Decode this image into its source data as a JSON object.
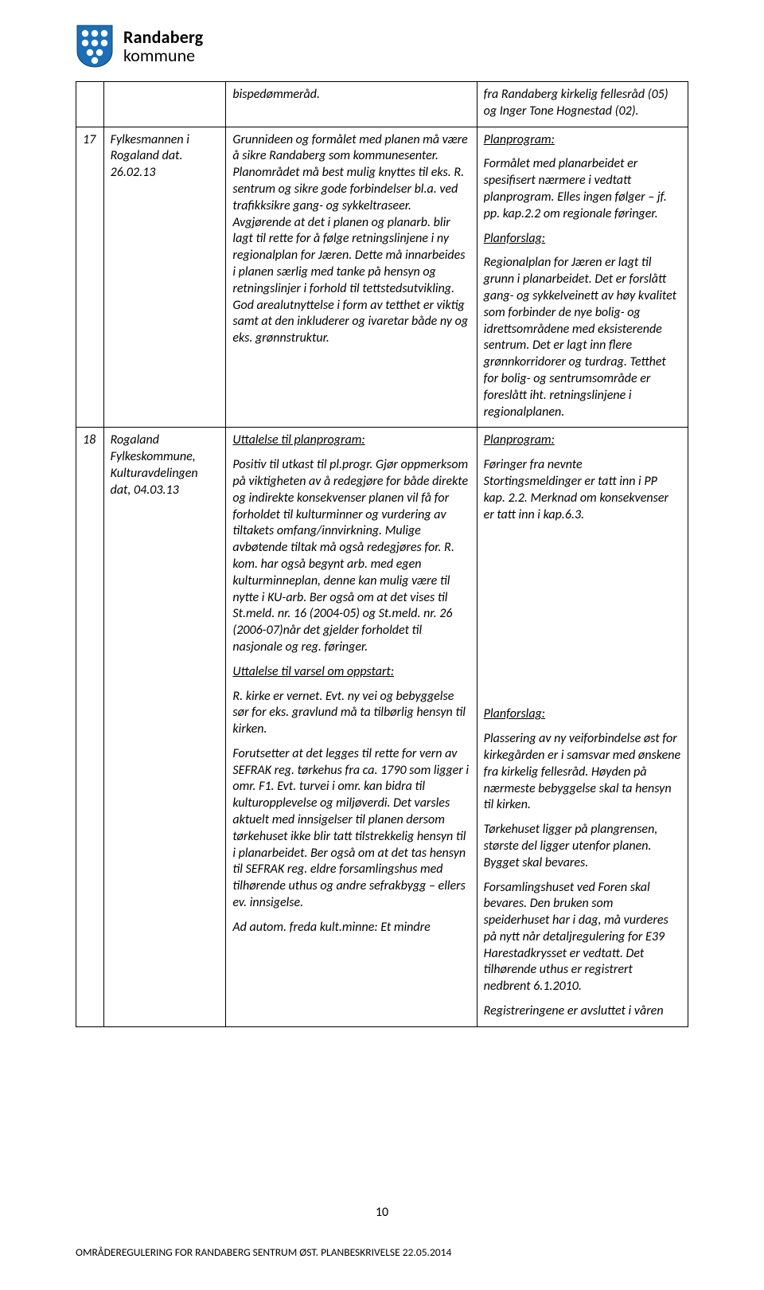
{
  "brand": {
    "line1": "Randaberg",
    "line2": "kommune"
  },
  "page_number": "10",
  "footer": "OMRÅDEREGULERING FOR RANDABERG SENTRUM ØST. PLANBESKRIVELSE 22.05.2014",
  "rows": [
    {
      "n": "",
      "who": "",
      "mid": [
        {
          "text": "bispedømmeråd."
        }
      ],
      "rsp": [
        {
          "text": "fra Randaberg kirkelig fellesråd (05) og Inger Tone Hognestad (02)."
        }
      ]
    },
    {
      "n": "17",
      "who": "Fylkesmannen i Rogaland dat. 26.02.13",
      "mid": [
        {
          "text": "Grunnideen og formålet med planen må være å sikre Randaberg som kommunesenter. Planområdet må best mulig knyttes til eks. R. sentrum og sikre gode forbindelser bl.a. ved trafikksikre gang- og sykkeltraseer. Avgjørende at det i planen og planarb. blir lagt til rette for å følge retningslinjene i ny regionalplan for Jæren. Dette må innarbeides i planen særlig med tanke på hensyn og retningslinjer i forhold til tettstedsutvikling. God arealutnyttelse i form av tetthet er viktig samt at den inkluderer og ivaretar både ny og eks. grønnstruktur."
        }
      ],
      "rsp": [
        {
          "u": true,
          "text": "Planprogram:"
        },
        {
          "text": "Formålet med planarbeidet er spesifisert nærmere i vedtatt planprogram. Elles ingen følger – jf. pp. kap.2.2 om regionale føringer."
        },
        {
          "u": true,
          "text": "Planforslag:"
        },
        {
          "text": "Regionalplan for Jæren er lagt til grunn i planarbeidet. Det er forslått gang- og sykkelveinett av høy kvalitet som forbinder de nye bolig- og idrettsområdene med eksisterende sentrum. Det er lagt inn flere grønnkorridorer og turdrag. Tetthet for bolig- og sentrumsområde er foreslått iht. retningslinjene i regionalplanen."
        }
      ]
    },
    {
      "n": "18",
      "who": "Rogaland Fylkeskommune, Kulturavdelingen dat, 04.03.13",
      "mid": [
        {
          "u": true,
          "text": "Uttalelse til planprogram:"
        },
        {
          "text": "Positiv til utkast til pl.progr. Gjør oppmerksom på viktigheten av å redegjøre for både direkte og indirekte konsekvenser planen vil få for forholdet til kulturminner og vurdering av tiltakets omfang/innvirkning. Mulige avbøtende tiltak må også redegjøres for. R. kom. har også begynt arb. med egen kulturminneplan, denne kan mulig være til nytte i KU-arb. Ber også om at det vises til St.meld. nr. 16 (2004-05) og St.meld. nr. 26 (2006-07)når det gjelder forholdet til nasjonale og reg. føringer."
        },
        {
          "u": true,
          "text": "Uttalelse til varsel om oppstart:"
        },
        {
          "text": " R. kirke er vernet. Evt. ny vei og bebyggelse sør for eks. gravlund må ta tilbørlig hensyn til kirken."
        },
        {
          "text": "Forutsetter at det legges til rette for vern av SEFRAK reg. tørkehus fra ca. 1790 som ligger i omr. F1. Evt. turvei i omr. kan bidra til kulturopplevelse og miljøverdi. Det varsles aktuelt med innsigelser til planen dersom tørkehuset ikke blir tatt tilstrekkelig hensyn til i planarbeidet. Ber også om at det tas hensyn til SEFRAK reg. eldre forsamlingshus med tilhørende uthus og andre sefrakbygg – ellers ev. innsigelse."
        },
        {
          "text": "Ad autom. freda kult.minne: Et mindre"
        }
      ],
      "rsp": [
        {
          "u": true,
          "text": "Planprogram:"
        },
        {
          "text": "Føringer fra nevnte Stortingsmeldinger er tatt inn i PP kap. 2.2. Merknad om konsekvenser er tatt inn i kap.6.3."
        },
        {
          "spacer": 220
        },
        {
          "u": true,
          "text": "Planforslag:"
        },
        {
          "text": "Plassering av ny veiforbindelse øst for kirkegården er i samsvar med ønskene fra kirkelig fellesråd. Høyden på nærmeste bebyggelse skal ta hensyn til kirken."
        },
        {
          "text": "Tørkehuset ligger på plangrensen, største del ligger utenfor planen. Bygget skal bevares."
        },
        {
          "text": "Forsamlingshuset ved Foren skal bevares. Den bruken som speiderhuset har i dag, må vurderes på nytt når detaljregulering for E39 Harestadkrysset er vedtatt. Det tilhørende uthus er registrert nedbrent 6.1.2010."
        },
        {
          "text": "Registreringene er avsluttet i våren"
        }
      ]
    }
  ]
}
